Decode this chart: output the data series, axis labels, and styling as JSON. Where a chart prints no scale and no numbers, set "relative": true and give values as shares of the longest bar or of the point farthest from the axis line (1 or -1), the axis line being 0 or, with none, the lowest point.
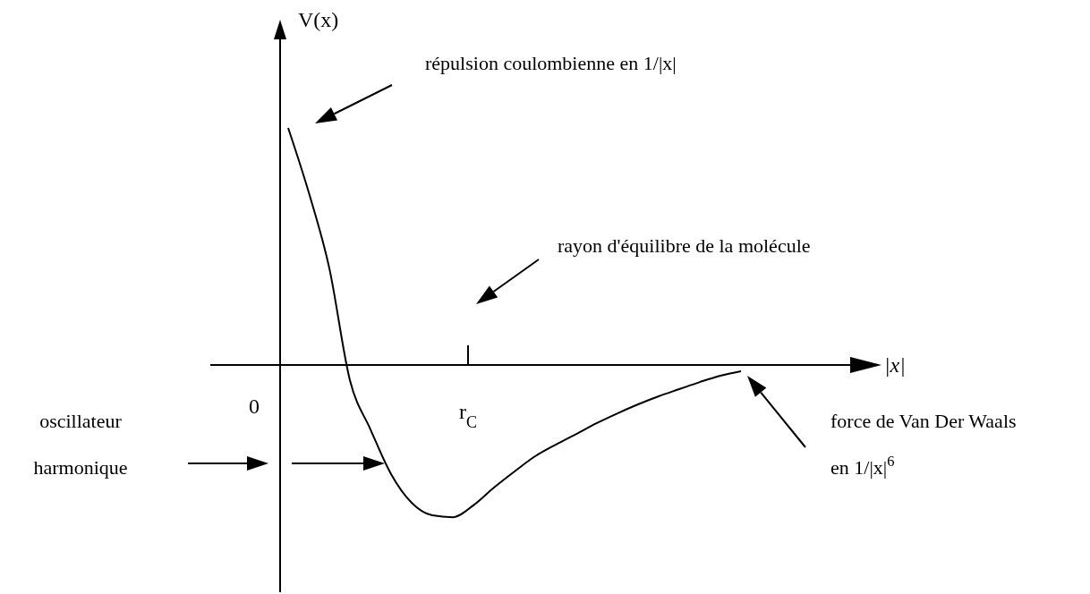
{
  "chart_data": {
    "type": "line",
    "relative": true,
    "ylabel": "V(x)",
    "categories": [
      null,
      null,
      null,
      null,
      null,
      null,
      null,
      null,
      null,
      null,
      null,
      null,
      null,
      null,
      null,
      null,
      null,
      null,
      null,
      null,
      null,
      null,
      null
    ],
    "series": [
      {
        "color": "#000000",
        "values": [
          1.0,
          0.728,
          0.408,
          -0.064,
          -0.272,
          -0.46,
          -0.581,
          -0.634,
          -0.642,
          -0.592,
          -0.517,
          -0.449,
          -0.385,
          -0.336,
          -0.291,
          -0.245,
          -0.204,
          -0.166,
          -0.132,
          -0.102,
          -0.072,
          -0.045,
          -0.026
        ]
      }
    ],
    "annotations": [
      "répulsion coulombienne en 1/|x|",
      "rayon d'équilibre de la molécule",
      "oscillateur harmonique",
      "force de Van Der Waals en 1/|x|$^{6}$",
      "0",
      "r$_{C}$",
      "|x|"
    ],
    "marker": "none",
    "line_style": "solid"
  }
}
